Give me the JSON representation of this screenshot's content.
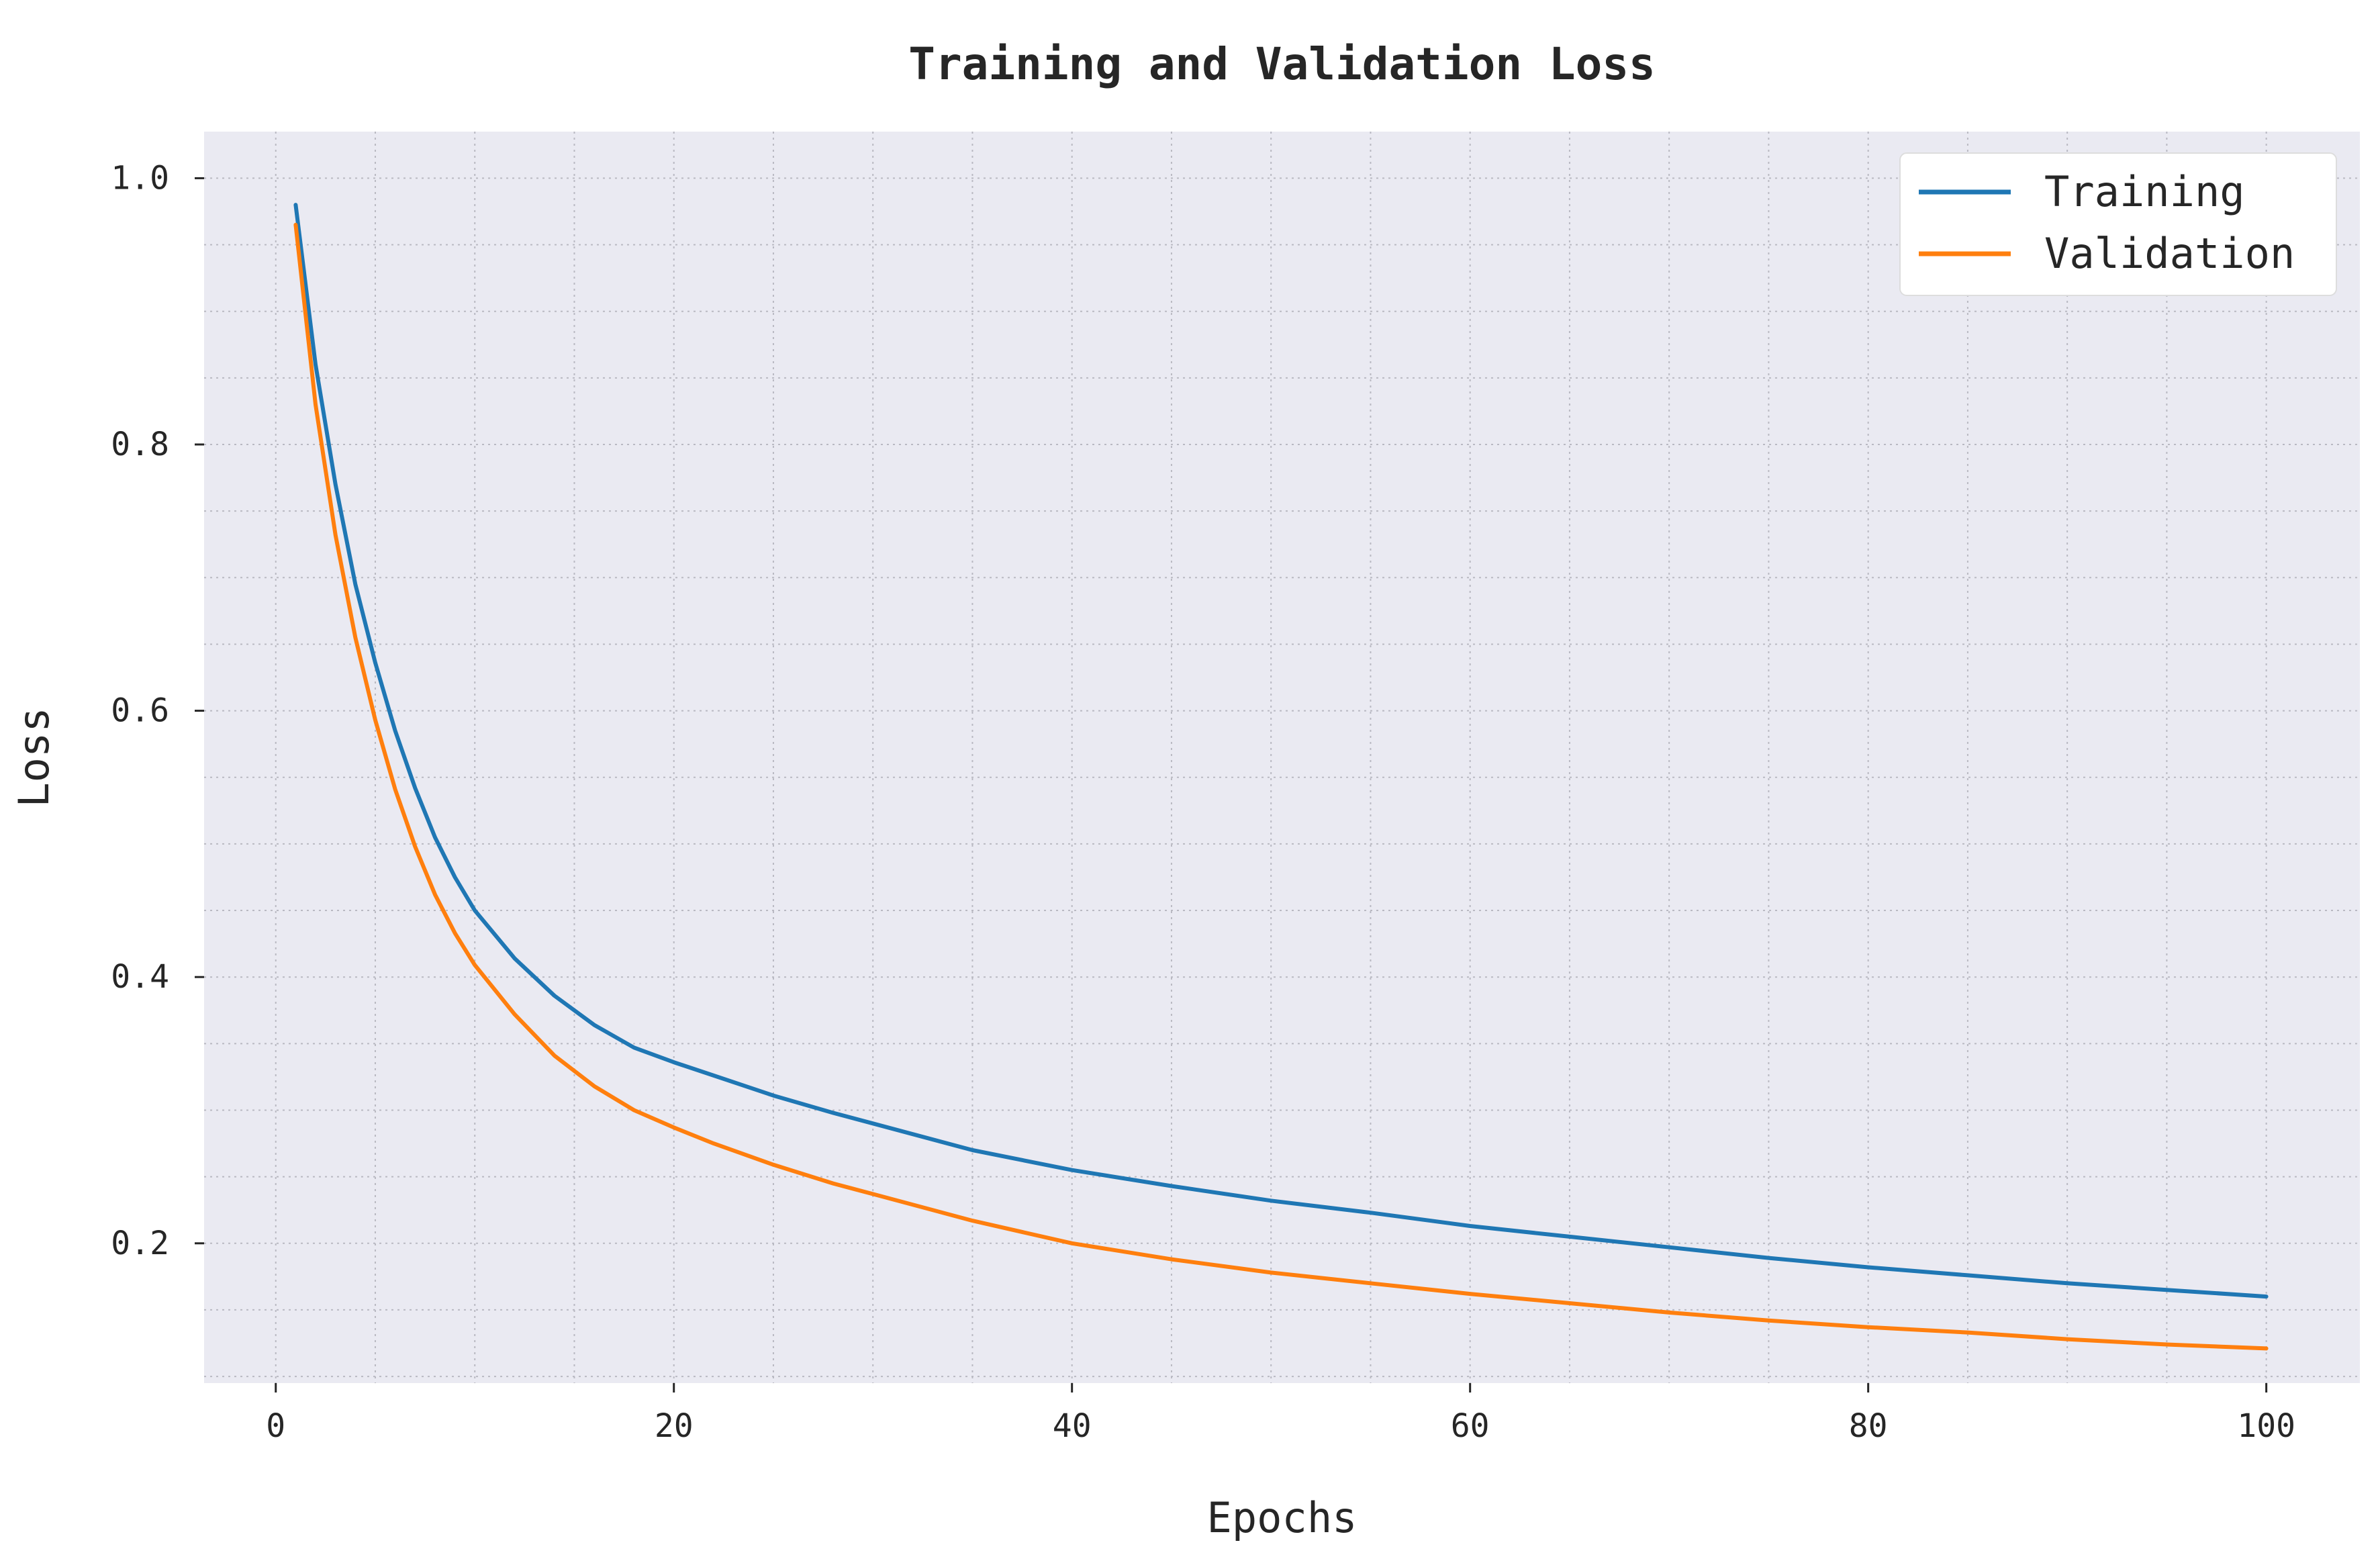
{
  "chart_data": {
    "type": "line",
    "title": "Training and Validation Loss",
    "xlabel": "Epochs",
    "ylabel": "Loss",
    "xlim": [
      -3.6,
      104.7
    ],
    "ylim": [
      0.095,
      1.035
    ],
    "x_ticks": [
      0,
      20,
      40,
      60,
      80,
      100
    ],
    "x_tick_labels": [
      "0",
      "20",
      "40",
      "60",
      "80",
      "100"
    ],
    "y_ticks": [
      0.2,
      0.4,
      0.6,
      0.8,
      1.0
    ],
    "y_tick_labels": [
      "0.2",
      "0.4",
      "0.6",
      "0.8",
      "1.0"
    ],
    "minor_x_step": 5,
    "minor_y_step": 0.05,
    "grid": true,
    "legend_position": "top-right",
    "background": "#EAEAF2",
    "series": [
      {
        "name": "Training",
        "color": "#1F77B4",
        "x": [
          1,
          2,
          3,
          4,
          5,
          6,
          7,
          8,
          9,
          10,
          12,
          14,
          16,
          18,
          20,
          22,
          25,
          28,
          30,
          35,
          40,
          45,
          50,
          55,
          60,
          65,
          70,
          75,
          80,
          85,
          90,
          95,
          100
        ],
        "y": [
          0.98,
          0.86,
          0.77,
          0.695,
          0.636,
          0.585,
          0.542,
          0.505,
          0.475,
          0.45,
          0.414,
          0.386,
          0.364,
          0.347,
          0.336,
          0.326,
          0.311,
          0.298,
          0.29,
          0.27,
          0.255,
          0.243,
          0.232,
          0.223,
          0.213,
          0.205,
          0.197,
          0.189,
          0.182,
          0.176,
          0.17,
          0.165,
          0.16
        ]
      },
      {
        "name": "Validation",
        "color": "#FF7F0E",
        "x": [
          1,
          2,
          3,
          4,
          5,
          6,
          7,
          8,
          9,
          10,
          12,
          14,
          16,
          18,
          20,
          22,
          25,
          28,
          30,
          35,
          40,
          45,
          50,
          55,
          60,
          65,
          70,
          75,
          80,
          85,
          90,
          95,
          100
        ],
        "y": [
          0.965,
          0.83,
          0.732,
          0.655,
          0.593,
          0.541,
          0.498,
          0.462,
          0.433,
          0.409,
          0.372,
          0.341,
          0.318,
          0.3,
          0.287,
          0.275,
          0.259,
          0.245,
          0.237,
          0.217,
          0.2,
          0.188,
          0.178,
          0.17,
          0.162,
          0.155,
          0.148,
          0.142,
          0.137,
          0.133,
          0.128,
          0.124,
          0.121
        ]
      }
    ]
  }
}
